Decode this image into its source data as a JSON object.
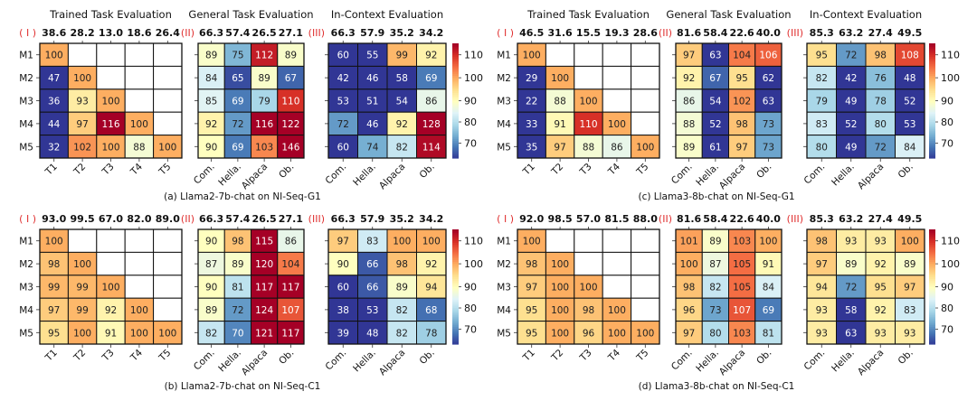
{
  "chart_data": [
    {
      "type": "heatmap",
      "caption": "(a) Llama2-7b-chat on NI-Seq-G1",
      "colorbar": {
        "ticks": [
          "70",
          "80",
          "90",
          "100",
          "110"
        ],
        "range": [
          63,
          115
        ],
        "colormap": "RdYlBu_r"
      },
      "panels": [
        {
          "title": "Trained Task Evaluation",
          "roman": "( I )",
          "header_values": [
            "38.6",
            "28.2",
            "13.0",
            "18.6",
            "26.4"
          ],
          "row_labels": [
            "M1",
            "M2",
            "M3",
            "M4",
            "M5"
          ],
          "col_labels": [
            "T1",
            "T2",
            "T3",
            "T4",
            "T5"
          ],
          "values": [
            [
              100,
              null,
              null,
              null,
              null
            ],
            [
              47,
              100,
              null,
              null,
              null
            ],
            [
              36,
              93,
              100,
              null,
              null
            ],
            [
              44,
              97,
              116,
              100,
              null
            ],
            [
              32,
              102,
              100,
              88,
              100
            ]
          ]
        },
        {
          "title": "General Task Evaluation",
          "roman": "(II)",
          "header_values": [
            "66.3",
            "57.4",
            "26.5",
            "27.1"
          ],
          "col_labels": [
            "Com.",
            "Hella.",
            "Alpaca",
            "Ob."
          ],
          "values": [
            [
              89,
              75,
              112,
              89
            ],
            [
              84,
              65,
              89,
              67
            ],
            [
              85,
              69,
              79,
              110
            ],
            [
              92,
              72,
              116,
              122
            ],
            [
              90,
              69,
              103,
              146
            ]
          ]
        },
        {
          "title": "In-Context Evaluation",
          "roman": "(III)",
          "header_values": [
            "66.3",
            "57.9",
            "35.2",
            "34.2"
          ],
          "col_labels": [
            "Com.",
            "Hella.",
            "Alpaca",
            "Ob."
          ],
          "values": [
            [
              60,
              55,
              99,
              92
            ],
            [
              42,
              46,
              58,
              69
            ],
            [
              53,
              51,
              54,
              86
            ],
            [
              72,
              46,
              92,
              128
            ],
            [
              60,
              74,
              82,
              114
            ]
          ]
        }
      ]
    },
    {
      "type": "heatmap",
      "caption": "(c) Llama3-8b-chat on NI-Seq-G1",
      "colorbar": {
        "ticks": [
          "70",
          "80",
          "90",
          "100",
          "110"
        ],
        "range": [
          63,
          115
        ],
        "colormap": "RdYlBu_r"
      },
      "panels": [
        {
          "title": "Trained Task Evaluation",
          "roman": "( I )",
          "header_values": [
            "46.5",
            "31.6",
            "15.5",
            "19.3",
            "28.6"
          ],
          "row_labels": [
            "M1",
            "M2",
            "M3",
            "M4",
            "M5"
          ],
          "col_labels": [
            "T1",
            "T2",
            "T3",
            "T4",
            "T5"
          ],
          "values": [
            [
              100,
              null,
              null,
              null,
              null
            ],
            [
              29,
              100,
              null,
              null,
              null
            ],
            [
              22,
              88,
              100,
              null,
              null
            ],
            [
              33,
              91,
              110,
              100,
              null
            ],
            [
              35,
              97,
              88,
              86,
              100
            ]
          ]
        },
        {
          "title": "General Task Evaluation",
          "roman": "(II)",
          "header_values": [
            "81.6",
            "58.4",
            "22.6",
            "40.0"
          ],
          "col_labels": [
            "Com.",
            "Hella.",
            "Alpaca",
            "Ob."
          ],
          "values": [
            [
              97,
              63,
              104,
              106
            ],
            [
              92,
              67,
              95,
              62
            ],
            [
              86,
              54,
              102,
              63
            ],
            [
              88,
              52,
              98,
              73
            ],
            [
              89,
              61,
              97,
              73
            ]
          ]
        },
        {
          "title": "In-Context Evaluation",
          "roman": "(III)",
          "header_values": [
            "85.3",
            "63.2",
            "27.4",
            "49.5"
          ],
          "col_labels": [
            "Com.",
            "Hella.",
            "Alpaca",
            "Ob."
          ],
          "values": [
            [
              95,
              72,
              98,
              108
            ],
            [
              82,
              42,
              76,
              48
            ],
            [
              79,
              49,
              78,
              52
            ],
            [
              83,
              52,
              80,
              53
            ],
            [
              80,
              49,
              72,
              84
            ]
          ]
        }
      ]
    },
    {
      "type": "heatmap",
      "caption": "(b) Llama2-7b-chat on NI-Seq-C1",
      "colorbar": {
        "ticks": [
          "70",
          "80",
          "90",
          "100",
          "110"
        ],
        "range": [
          63,
          115
        ],
        "colormap": "RdYlBu_r"
      },
      "panels": [
        {
          "title": "",
          "roman": "( I )",
          "header_values": [
            "93.0",
            "99.5",
            "67.0",
            "82.0",
            "89.0"
          ],
          "row_labels": [
            "M1",
            "M2",
            "M3",
            "M4",
            "M5"
          ],
          "col_labels": [
            "T1",
            "T2",
            "T3",
            "T4",
            "T5"
          ],
          "values": [
            [
              100,
              null,
              null,
              null,
              null
            ],
            [
              98,
              100,
              null,
              null,
              null
            ],
            [
              99,
              99,
              100,
              null,
              null
            ],
            [
              97,
              99,
              92,
              100,
              null
            ],
            [
              95,
              100,
              91,
              100,
              100
            ]
          ]
        },
        {
          "title": "",
          "roman": "(II)",
          "header_values": [
            "66.3",
            "57.4",
            "26.5",
            "27.1"
          ],
          "col_labels": [
            "Com.",
            "Hella.",
            "Alpaca",
            "Ob."
          ],
          "values": [
            [
              90,
              98,
              115,
              86
            ],
            [
              87,
              89,
              120,
              104
            ],
            [
              90,
              81,
              117,
              117
            ],
            [
              89,
              72,
              124,
              107
            ],
            [
              82,
              70,
              121,
              117
            ]
          ]
        },
        {
          "title": "",
          "roman": "(III)",
          "header_values": [
            "66.3",
            "57.9",
            "35.2",
            "34.2"
          ],
          "col_labels": [
            "Com.",
            "Hella.",
            "Alpaca",
            "Ob."
          ],
          "values": [
            [
              97,
              83,
              100,
              100
            ],
            [
              90,
              66,
              98,
              92
            ],
            [
              60,
              66,
              89,
              94
            ],
            [
              38,
              53,
              82,
              68
            ],
            [
              39,
              48,
              82,
              78
            ]
          ]
        }
      ]
    },
    {
      "type": "heatmap",
      "caption": "(d) Llama3-8b-chat on NI-Seq-C1",
      "colorbar": {
        "ticks": [
          "70",
          "80",
          "90",
          "100",
          "110"
        ],
        "range": [
          63,
          115
        ],
        "colormap": "RdYlBu_r"
      },
      "panels": [
        {
          "title": "",
          "roman": "( I )",
          "header_values": [
            "92.0",
            "98.5",
            "57.0",
            "81.5",
            "88.0"
          ],
          "row_labels": [
            "M1",
            "M2",
            "M3",
            "M4",
            "M5"
          ],
          "col_labels": [
            "T1",
            "T2",
            "T3",
            "T4",
            "T5"
          ],
          "values": [
            [
              100,
              null,
              null,
              null,
              null
            ],
            [
              98,
              100,
              null,
              null,
              null
            ],
            [
              97,
              100,
              100,
              null,
              null
            ],
            [
              95,
              100,
              98,
              100,
              null
            ],
            [
              95,
              100,
              96,
              100,
              100
            ]
          ]
        },
        {
          "title": "",
          "roman": "(II)",
          "header_values": [
            "81.6",
            "58.4",
            "22.6",
            "40.0"
          ],
          "col_labels": [
            "Com.",
            "Hella.",
            "Alpaca",
            "Ob."
          ],
          "values": [
            [
              101,
              89,
              103,
              100
            ],
            [
              100,
              87,
              105,
              91
            ],
            [
              98,
              82,
              105,
              84
            ],
            [
              96,
              73,
              107,
              69
            ],
            [
              97,
              80,
              103,
              81
            ]
          ]
        },
        {
          "title": "",
          "roman": "(III)",
          "header_values": [
            "85.3",
            "63.2",
            "27.4",
            "49.5"
          ],
          "col_labels": [
            "Com.",
            "Hella.",
            "Alpaca",
            "Ob."
          ],
          "values": [
            [
              98,
              93,
              93,
              100
            ],
            [
              97,
              89,
              92,
              89
            ],
            [
              94,
              72,
              95,
              97
            ],
            [
              93,
              58,
              92,
              83
            ],
            [
              93,
              63,
              93,
              93
            ]
          ]
        }
      ]
    }
  ]
}
